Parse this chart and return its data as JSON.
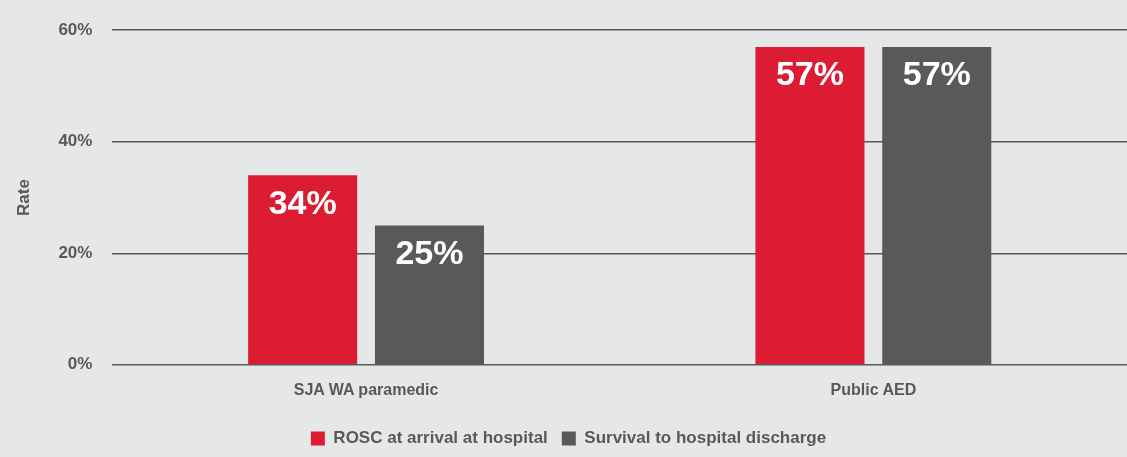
{
  "chart_data": {
    "type": "bar",
    "ylabel": "Rate",
    "categories": [
      "SJA WA paramedic",
      "Public AED"
    ],
    "series": [
      {
        "name": "ROSC at arrival at hospital",
        "color": "#dc1c32",
        "values": [
          34,
          57
        ],
        "value_labels": [
          "34%",
          "57%"
        ]
      },
      {
        "name": "Survival to hospital discharge",
        "color": "#58595b",
        "values": [
          25,
          57
        ],
        "value_labels": [
          "25%",
          "57%"
        ]
      }
    ],
    "ylim": [
      0,
      60
    ],
    "yticks": [
      {
        "value": 0,
        "label": "0%"
      },
      {
        "value": 20,
        "label": "20%"
      },
      {
        "value": 40,
        "label": "40%"
      },
      {
        "value": 60,
        "label": "60%"
      }
    ],
    "grid": "y",
    "legend": "bottom"
  }
}
